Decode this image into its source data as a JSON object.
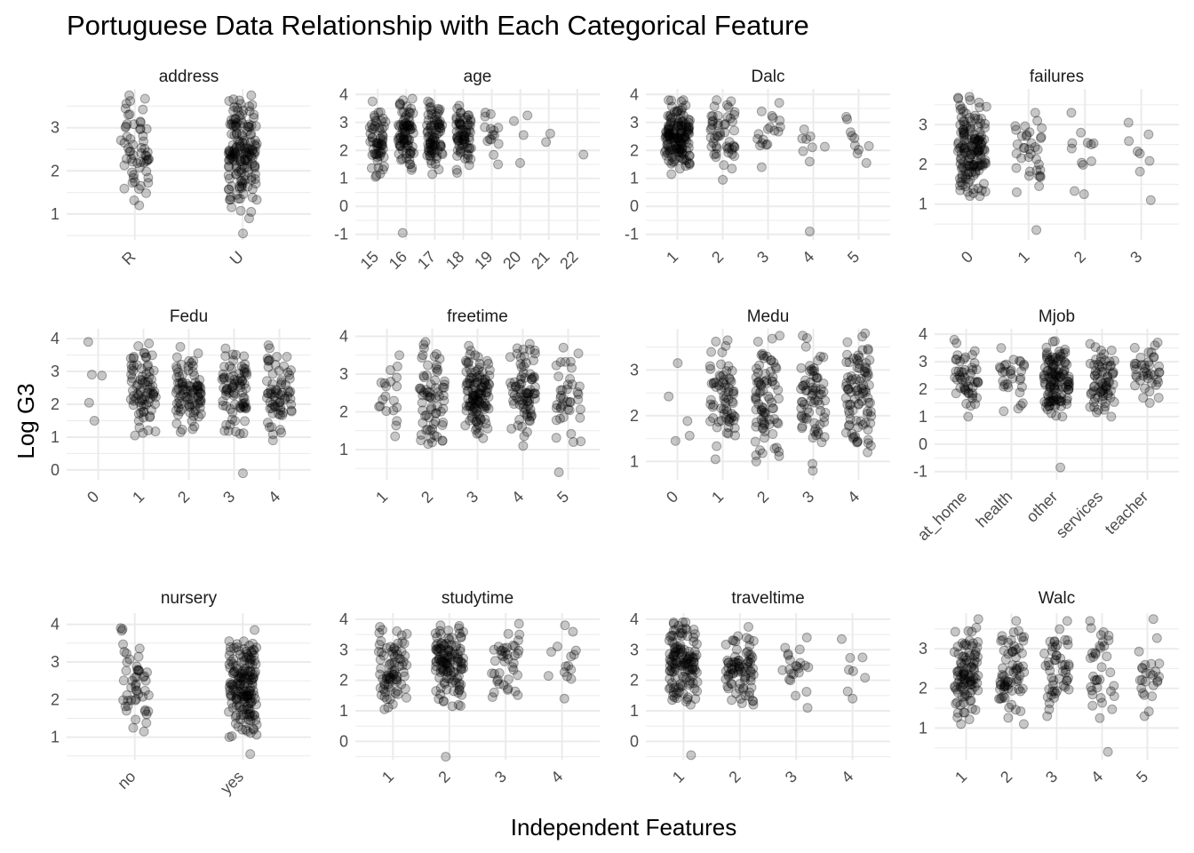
{
  "chart_data": {
    "type": "scatter",
    "title": "Portuguese Data Relationship with Each Categorical Feature",
    "xlabel": "Independent Features",
    "ylabel": "Log G3",
    "colors": {
      "point_fill": "#000000",
      "point_alpha": 0.22,
      "grid": "#ebebeb",
      "background": "#ffffff"
    },
    "grid": true,
    "panels": [
      {
        "name": "address",
        "categories": [
          "R",
          "U"
        ],
        "ylim": [
          0.4,
          3.9
        ],
        "yticks": [
          1,
          2,
          3
        ],
        "groups": [
          {
            "n": 60,
            "min": 1.2,
            "max": 3.75,
            "outliers": []
          },
          {
            "n": 160,
            "min": 1.05,
            "max": 3.75,
            "outliers": [
              0.55,
              0.9
            ]
          }
        ]
      },
      {
        "name": "age",
        "categories": [
          "15",
          "16",
          "17",
          "18",
          "19",
          "20",
          "21",
          "22"
        ],
        "ylim": [
          -1.2,
          4.2
        ],
        "yticks": [
          -1,
          0,
          1,
          2,
          3,
          4
        ],
        "groups": [
          {
            "n": 60,
            "min": 1.05,
            "max": 3.75,
            "outliers": []
          },
          {
            "n": 80,
            "min": 1.3,
            "max": 3.85,
            "outliers": [
              -0.95
            ]
          },
          {
            "n": 80,
            "min": 1.15,
            "max": 3.75,
            "outliers": []
          },
          {
            "n": 70,
            "min": 1.2,
            "max": 3.6,
            "outliers": []
          },
          {
            "n": 15,
            "min": 1.5,
            "max": 3.35,
            "outliers": []
          },
          {
            "n": 3,
            "min": 2.55,
            "max": 3.25,
            "outliers": [
              1.55
            ]
          },
          {
            "n": 2,
            "min": 2.3,
            "max": 2.6,
            "outliers": []
          },
          {
            "n": 1,
            "min": 1.85,
            "max": 1.85,
            "outliers": []
          }
        ]
      },
      {
        "name": "Dalc",
        "categories": [
          "1",
          "2",
          "3",
          "4",
          "5"
        ],
        "ylim": [
          -1.2,
          4.2
        ],
        "yticks": [
          -1,
          0,
          1,
          2,
          3,
          4
        ],
        "groups": [
          {
            "n": 150,
            "min": 1.15,
            "max": 3.8,
            "outliers": []
          },
          {
            "n": 50,
            "min": 1.35,
            "max": 3.8,
            "outliers": [
              0.95
            ]
          },
          {
            "n": 18,
            "min": 1.4,
            "max": 3.7,
            "outliers": []
          },
          {
            "n": 8,
            "min": 1.6,
            "max": 2.75,
            "outliers": [
              -0.9
            ]
          },
          {
            "n": 10,
            "min": 1.55,
            "max": 3.2,
            "outliers": []
          }
        ]
      },
      {
        "name": "failures",
        "categories": [
          "0",
          "1",
          "2",
          "3"
        ],
        "ylim": [
          0.1,
          3.9
        ],
        "yticks": [
          1,
          2,
          3
        ],
        "groups": [
          {
            "n": 150,
            "min": 1.2,
            "max": 3.7,
            "outliers": []
          },
          {
            "n": 35,
            "min": 1.3,
            "max": 3.3,
            "outliers": [
              0.35
            ]
          },
          {
            "n": 12,
            "min": 1.25,
            "max": 3.3,
            "outliers": []
          },
          {
            "n": 8,
            "min": 1.1,
            "max": 3.05,
            "outliers": []
          }
        ]
      },
      {
        "name": "Fedu",
        "categories": [
          "0",
          "1",
          "2",
          "3",
          "4"
        ],
        "ylim": [
          -0.3,
          4.3
        ],
        "yticks": [
          0,
          1,
          2,
          3,
          4
        ],
        "groups": [
          {
            "n": 5,
            "min": 1.5,
            "max": 3.9,
            "outliers": []
          },
          {
            "n": 80,
            "min": 1.05,
            "max": 3.85,
            "outliers": []
          },
          {
            "n": 90,
            "min": 1.15,
            "max": 3.75,
            "outliers": []
          },
          {
            "n": 80,
            "min": 1.1,
            "max": 3.7,
            "outliers": [
              -0.1
            ]
          },
          {
            "n": 70,
            "min": 0.9,
            "max": 3.8,
            "outliers": []
          }
        ]
      },
      {
        "name": "freetime",
        "categories": [
          "1",
          "2",
          "3",
          "4",
          "5"
        ],
        "ylim": [
          0.2,
          4.2
        ],
        "yticks": [
          1,
          2,
          3,
          4
        ],
        "groups": [
          {
            "n": 20,
            "min": 1.35,
            "max": 3.5,
            "outliers": []
          },
          {
            "n": 70,
            "min": 1.15,
            "max": 3.85,
            "outliers": []
          },
          {
            "n": 120,
            "min": 1.3,
            "max": 3.75,
            "outliers": []
          },
          {
            "n": 80,
            "min": 1.1,
            "max": 3.8,
            "outliers": []
          },
          {
            "n": 40,
            "min": 1.2,
            "max": 3.7,
            "outliers": [
              0.4
            ]
          }
        ]
      },
      {
        "name": "Medu",
        "categories": [
          "0",
          "1",
          "2",
          "3",
          "4"
        ],
        "ylim": [
          0.6,
          3.9
        ],
        "yticks": [
          1,
          2,
          3
        ],
        "groups": [
          {
            "n": 5,
            "min": 1.45,
            "max": 3.15,
            "outliers": []
          },
          {
            "n": 70,
            "min": 1.05,
            "max": 3.65,
            "outliers": []
          },
          {
            "n": 80,
            "min": 1.0,
            "max": 3.75,
            "outliers": []
          },
          {
            "n": 70,
            "min": 0.95,
            "max": 3.75,
            "outliers": [
              0.8
            ]
          },
          {
            "n": 90,
            "min": 1.2,
            "max": 3.8,
            "outliers": []
          }
        ]
      },
      {
        "name": "Mjob",
        "categories": [
          "at_home",
          "health",
          "other",
          "services",
          "teacher"
        ],
        "ylim": [
          -1.3,
          4.2
        ],
        "yticks": [
          -1,
          0,
          1,
          2,
          3,
          4
        ],
        "groups": [
          {
            "n": 50,
            "min": 1.0,
            "max": 3.8,
            "outliers": []
          },
          {
            "n": 30,
            "min": 1.2,
            "max": 3.5,
            "outliers": []
          },
          {
            "n": 120,
            "min": 1.0,
            "max": 3.75,
            "outliers": [
              -0.85
            ]
          },
          {
            "n": 70,
            "min": 1.0,
            "max": 3.65,
            "outliers": []
          },
          {
            "n": 40,
            "min": 1.5,
            "max": 3.7,
            "outliers": []
          }
        ]
      },
      {
        "name": "nursery",
        "categories": [
          "no",
          "yes"
        ],
        "ylim": [
          0.4,
          4.3
        ],
        "yticks": [
          1,
          2,
          3,
          4
        ],
        "groups": [
          {
            "n": 50,
            "min": 1.15,
            "max": 3.9,
            "outliers": []
          },
          {
            "n": 170,
            "min": 1.0,
            "max": 3.85,
            "outliers": [
              0.55,
              1.2
            ]
          }
        ]
      },
      {
        "name": "studytime",
        "categories": [
          "1",
          "2",
          "3",
          "4"
        ],
        "ylim": [
          -0.6,
          4.2
        ],
        "yticks": [
          0,
          1,
          2,
          3,
          4
        ],
        "groups": [
          {
            "n": 80,
            "min": 1.05,
            "max": 3.75,
            "outliers": []
          },
          {
            "n": 120,
            "min": 1.15,
            "max": 3.8,
            "outliers": [
              -0.5
            ]
          },
          {
            "n": 40,
            "min": 1.45,
            "max": 3.85,
            "outliers": []
          },
          {
            "n": 15,
            "min": 1.4,
            "max": 3.8,
            "outliers": []
          }
        ]
      },
      {
        "name": "traveltime",
        "categories": [
          "1",
          "2",
          "3",
          "4"
        ],
        "ylim": [
          -0.6,
          4.2
        ],
        "yticks": [
          0,
          1,
          2,
          3,
          4
        ],
        "groups": [
          {
            "n": 130,
            "min": 1.2,
            "max": 3.9,
            "outliers": [
              -0.45
            ]
          },
          {
            "n": 80,
            "min": 1.2,
            "max": 3.75,
            "outliers": []
          },
          {
            "n": 22,
            "min": 1.1,
            "max": 3.4,
            "outliers": []
          },
          {
            "n": 8,
            "min": 1.4,
            "max": 3.35,
            "outliers": []
          }
        ]
      },
      {
        "name": "Walc",
        "categories": [
          "1",
          "2",
          "3",
          "4",
          "5"
        ],
        "ylim": [
          0.2,
          3.9
        ],
        "yticks": [
          1,
          2,
          3
        ],
        "groups": [
          {
            "n": 100,
            "min": 1.1,
            "max": 3.75,
            "outliers": []
          },
          {
            "n": 70,
            "min": 1.1,
            "max": 3.7,
            "outliers": []
          },
          {
            "n": 50,
            "min": 1.3,
            "max": 3.7,
            "outliers": []
          },
          {
            "n": 35,
            "min": 1.25,
            "max": 3.7,
            "outliers": [
              0.4
            ]
          },
          {
            "n": 25,
            "min": 1.3,
            "max": 3.75,
            "outliers": []
          }
        ]
      }
    ]
  }
}
